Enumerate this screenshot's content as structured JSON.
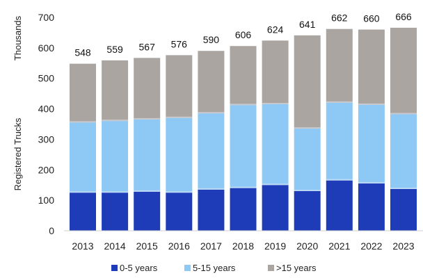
{
  "chart_data": {
    "type": "bar",
    "stacked": true,
    "categories": [
      "2013",
      "2014",
      "2015",
      "2016",
      "2017",
      "2018",
      "2019",
      "2020",
      "2021",
      "2022",
      "2023"
    ],
    "series": [
      {
        "name": "0-5 years",
        "color": "#1f3cb8",
        "values": [
          125,
          125,
          128,
          125,
          135,
          140,
          150,
          130,
          165,
          155,
          137
        ]
      },
      {
        "name": "5-15 years",
        "color": "#8ec8f5",
        "values": [
          230,
          235,
          237,
          245,
          250,
          272,
          265,
          205,
          255,
          258,
          245
        ]
      },
      {
        "name": ">15 years",
        "color": "#aaa5a1",
        "values": [
          193,
          199,
          202,
          206,
          205,
          194,
          209,
          306,
          242,
          247,
          284
        ]
      }
    ],
    "totals": [
      "548",
      "559",
      "567",
      "576",
      "590",
      "606",
      "624",
      "641",
      "662",
      "660",
      "666"
    ],
    "ylabel": "Registered Trucks",
    "yunit": "Thousands",
    "ylim": [
      0,
      700
    ],
    "yticks": [
      "0",
      "100",
      "200",
      "300",
      "400",
      "500",
      "600",
      "700"
    ],
    "grid": false,
    "legend_position": "bottom"
  }
}
